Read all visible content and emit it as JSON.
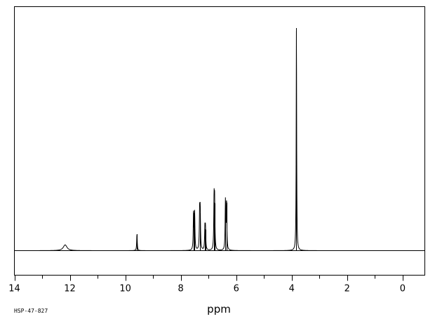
{
  "chart_data": {
    "type": "line",
    "chart_kind": "1H NMR spectrum",
    "xlabel": "ppm",
    "x_axis_reversed": true,
    "xlim": [
      14.0,
      -0.8
    ],
    "ylim": [
      0,
      100
    ],
    "grid": false,
    "x_ticks": [
      14,
      12,
      10,
      8,
      6,
      4,
      2,
      0
    ],
    "x_tick_labels": [
      "14",
      "12",
      "10",
      "8",
      "6",
      "4",
      "2",
      "0"
    ],
    "x_minor_tick_step": 1,
    "baseline": 0,
    "peaks": [
      {
        "ppm": 12.17,
        "height": 2.6,
        "shape": "broad",
        "width": 0.16
      },
      {
        "ppm": 9.58,
        "height": 7.4,
        "shape": "sharp",
        "width": 0.025
      },
      {
        "ppm": 7.54,
        "height": 16.9,
        "shape": "sharp",
        "width": 0.025
      },
      {
        "ppm": 7.5,
        "height": 16.6,
        "shape": "sharp",
        "width": 0.025
      },
      {
        "ppm": 7.32,
        "height": 16.9,
        "shape": "sharp",
        "width": 0.025
      },
      {
        "ppm": 7.3,
        "height": 16.6,
        "shape": "sharp",
        "width": 0.025
      },
      {
        "ppm": 7.13,
        "height": 9.7,
        "shape": "sharp",
        "width": 0.025
      },
      {
        "ppm": 7.11,
        "height": 9.4,
        "shape": "sharp",
        "width": 0.025
      },
      {
        "ppm": 6.8,
        "height": 21.6,
        "shape": "sharp",
        "width": 0.025
      },
      {
        "ppm": 6.78,
        "height": 21.3,
        "shape": "sharp",
        "width": 0.025
      },
      {
        "ppm": 6.39,
        "height": 22.0,
        "shape": "sharp",
        "width": 0.025
      },
      {
        "ppm": 6.35,
        "height": 21.6,
        "shape": "sharp",
        "width": 0.025
      },
      {
        "ppm": 3.83,
        "height": 100.0,
        "shape": "sharp",
        "width": 0.02
      }
    ]
  },
  "footer": {
    "spectrum_code": "HSP-47-827"
  }
}
